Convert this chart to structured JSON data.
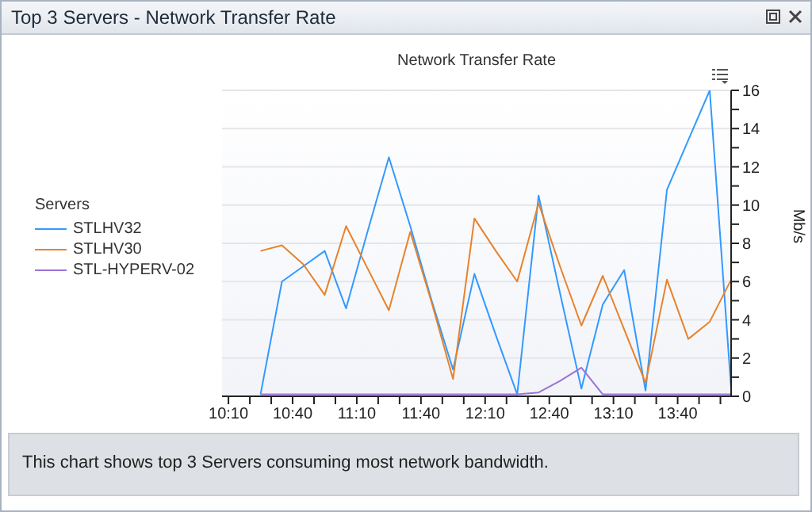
{
  "chart_data": {
    "type": "line",
    "title": "Top 3 Servers - Network Transfer Rate",
    "subtitle": "Network Transfer Rate",
    "ylabel": "Mb/s",
    "legend_title": "Servers",
    "legend": "left",
    "grid": "y",
    "annotations": [
      "This chart shows top 3 Servers consuming most network bandwidth."
    ],
    "x": [
      10.4167,
      10.5833,
      10.75,
      10.9167,
      11.0833,
      11.25,
      11.4167,
      11.5833,
      11.75,
      11.9167,
      12.0833,
      12.25,
      12.4167,
      12.5833,
      12.75,
      12.9167,
      13.0833,
      13.25,
      13.4167,
      13.5833,
      13.75,
      13.9167,
      14.0833
    ],
    "xlim": [
      10.1167,
      14.0833
    ],
    "xticks": [
      {
        "value": 10.1667,
        "label": "10:10"
      },
      {
        "value": 10.3333,
        "label": null
      },
      {
        "value": 10.5,
        "label": null
      },
      {
        "value": 10.6667,
        "label": "10:40"
      },
      {
        "value": 10.8333,
        "label": null
      },
      {
        "value": 11,
        "label": null
      },
      {
        "value": 11.1667,
        "label": "11:10"
      },
      {
        "value": 11.3333,
        "label": null
      },
      {
        "value": 11.5,
        "label": null
      },
      {
        "value": 11.6667,
        "label": "11:40"
      },
      {
        "value": 11.8333,
        "label": null
      },
      {
        "value": 12,
        "label": null
      },
      {
        "value": 12.1667,
        "label": "12:10"
      },
      {
        "value": 12.3333,
        "label": null
      },
      {
        "value": 12.5,
        "label": null
      },
      {
        "value": 12.6667,
        "label": "12:40"
      },
      {
        "value": 12.8333,
        "label": null
      },
      {
        "value": 13,
        "label": null
      },
      {
        "value": 13.1667,
        "label": "13:10"
      },
      {
        "value": 13.3333,
        "label": null
      },
      {
        "value": 13.5,
        "label": null
      },
      {
        "value": 13.6667,
        "label": "13:40"
      },
      {
        "value": 13.8333,
        "label": null
      },
      {
        "value": 14,
        "label": null
      }
    ],
    "ylim": [
      0,
      16
    ],
    "yticks": [
      0,
      {
        "value": 1,
        "label": null
      },
      2,
      {
        "value": 3,
        "label": null
      },
      4,
      {
        "value": 5,
        "label": null
      },
      6,
      {
        "value": 7,
        "label": null
      },
      8,
      {
        "value": 9,
        "label": null
      },
      10,
      {
        "value": 11,
        "label": null
      },
      12,
      {
        "value": 13,
        "label": null
      },
      14,
      {
        "value": 15,
        "label": null
      },
      16
    ],
    "series": [
      {
        "name": "STLHV32",
        "color": "#3399ff",
        "values": [
          0.1,
          6.0,
          6.8,
          7.6,
          4.6,
          8.6,
          12.5,
          8.9,
          5.0,
          1.4,
          6.4,
          3.2,
          0.1,
          10.5,
          5.4,
          0.4,
          4.8,
          6.6,
          0.3,
          10.8,
          13.4,
          16,
          0.4
        ]
      },
      {
        "name": "STLHV30",
        "color": "#e8822a",
        "values": [
          7.6,
          7.9,
          6.9,
          5.3,
          8.9,
          6.7,
          4.5,
          8.6,
          4.9,
          0.9,
          9.3,
          7.6,
          6.0,
          10.1,
          6.8,
          3.7,
          6.3,
          3.5,
          0.7,
          6.1,
          3.0,
          3.9,
          6.1
        ]
      },
      {
        "name": "STL-HYPERV-02",
        "color": "#9b72d8",
        "values": [
          0.1,
          0.1,
          0.1,
          0.1,
          0.1,
          0.1,
          0.1,
          0.1,
          0.1,
          0.1,
          0.1,
          0.1,
          0.1,
          0.2,
          0.8,
          1.5,
          0.1,
          0.1,
          0.1,
          0.1,
          0.1,
          0.1,
          0.1
        ]
      }
    ]
  }
}
